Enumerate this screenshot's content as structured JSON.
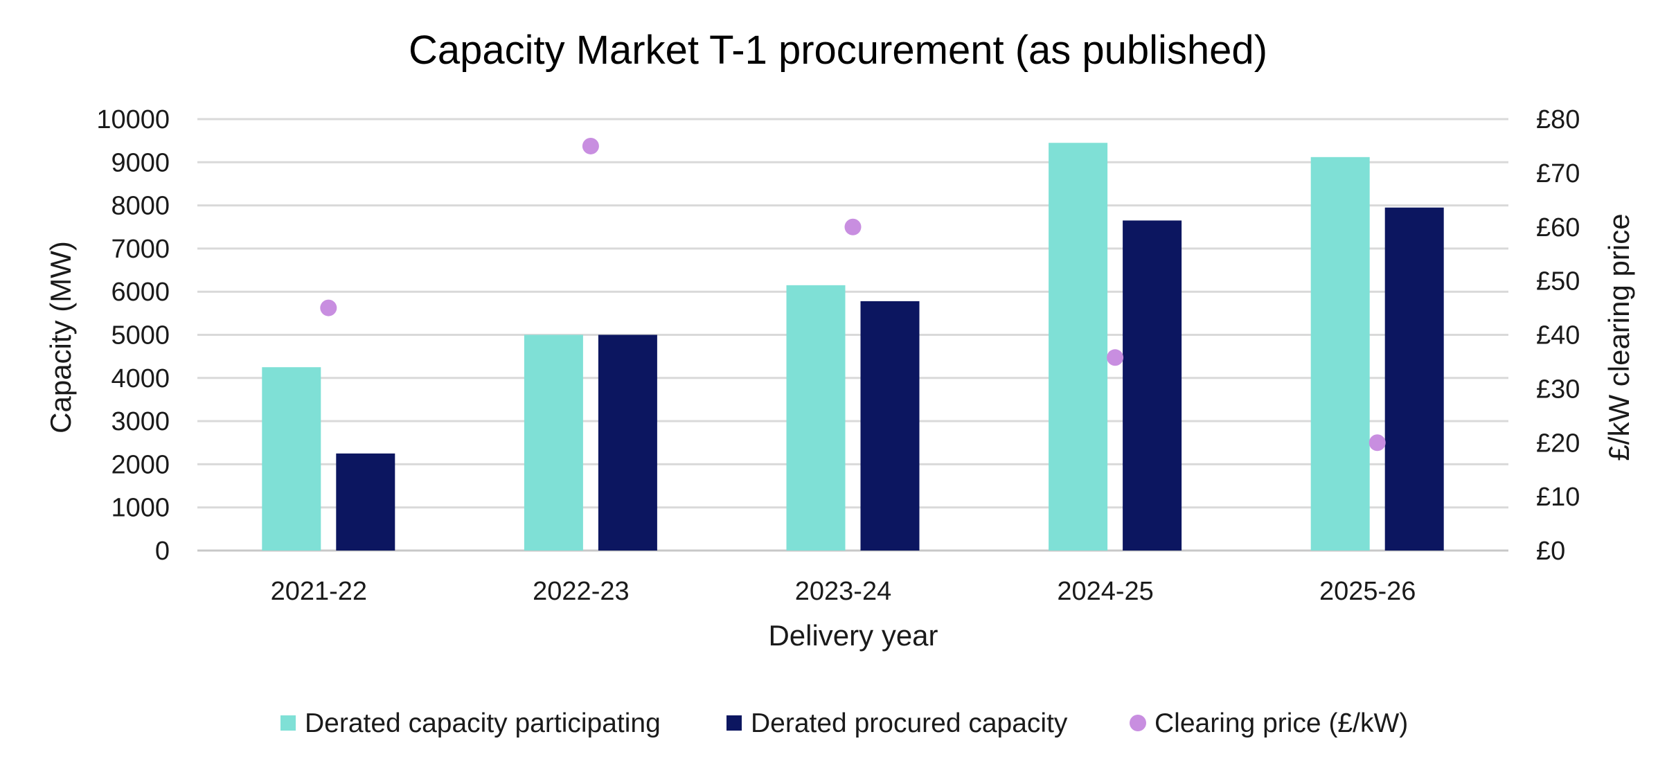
{
  "chart_data": {
    "type": "bar",
    "title": "Capacity Market T-1 procurement (as published)",
    "xlabel": "Delivery year",
    "ylabel": "Capacity (MW)",
    "y2label": "£/kW clearing price",
    "categories": [
      "2021-22",
      "2022-23",
      "2023-24",
      "2024-25",
      "2025-26"
    ],
    "ylim": [
      0,
      10000
    ],
    "yticks": [
      "0",
      "1000",
      "2000",
      "3000",
      "4000",
      "5000",
      "6000",
      "7000",
      "8000",
      "9000",
      "10000"
    ],
    "y2lim": [
      0,
      80
    ],
    "y2ticks": [
      "£0",
      "£10",
      "£20",
      "£30",
      "£40",
      "£50",
      "£60",
      "£70",
      "£80"
    ],
    "grid": true,
    "legend_position": "bottom",
    "series": [
      {
        "name": "Derated capacity participating",
        "type": "bar",
        "axis": "left",
        "color": "#7fe0d6",
        "values": [
          4250,
          5000,
          6150,
          9450,
          9120
        ]
      },
      {
        "name": "Derated procured capacity",
        "type": "bar",
        "axis": "left",
        "color": "#0c1660",
        "values": [
          2250,
          5000,
          5780,
          7650,
          7950
        ]
      },
      {
        "name": "Clearing price (£/kW)",
        "type": "scatter",
        "axis": "right",
        "color": "#c88ee0",
        "values": [
          45,
          75,
          60,
          35.79,
          20
        ]
      }
    ]
  }
}
